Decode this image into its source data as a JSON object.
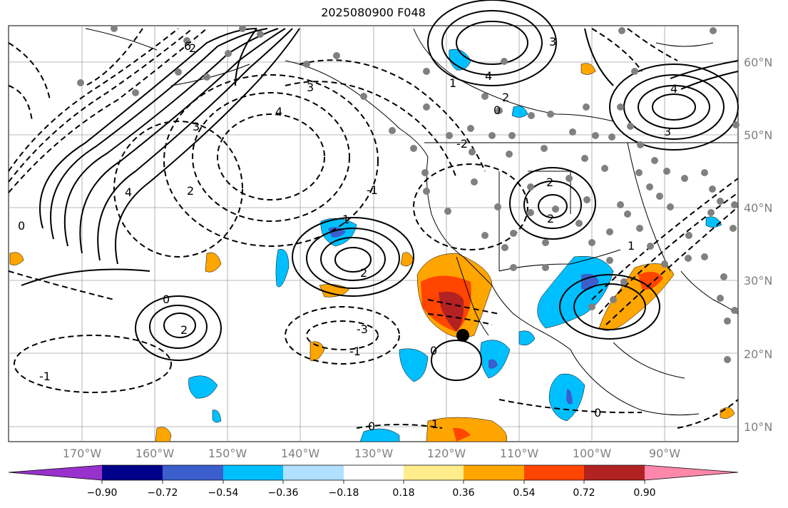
{
  "title": "2025080900 F048",
  "lat_labels": [
    "60°N",
    "50°N",
    "40°N",
    "30°N",
    "20°N",
    "10°N"
  ],
  "lon_labels": [
    "170°W",
    "160°W",
    "150°W",
    "140°W",
    "130°W",
    "120°W",
    "110°W",
    "100°W",
    "90°W"
  ],
  "colorbar": {
    "colors": [
      "#9932cc",
      "#00008b",
      "#3a5fcd",
      "#00bfff",
      "#b0e0ff",
      "#ffffff",
      "#ffec8b",
      "#ffa500",
      "#ff4500",
      "#b22222",
      "#ff88aa"
    ],
    "tick_labels": [
      "−0.90",
      "−0.72",
      "−0.54",
      "−0.36",
      "−0.18",
      "0.18",
      "0.36",
      "0.54",
      "0.72",
      "0.90"
    ]
  },
  "contour_labels": [
    "2",
    "4",
    "3",
    "6",
    "0",
    "1",
    "-1",
    "2",
    "3",
    "4",
    "0",
    "2",
    "-1",
    "2",
    "4",
    "2",
    "1",
    "0",
    "-3",
    "-1",
    "0",
    "2",
    "3",
    "0",
    "1",
    "-2",
    "0",
    "4",
    "2",
    "3",
    "1"
  ],
  "colors": {
    "station_dot": "#808080",
    "contour": "#000000",
    "coast": "#000000"
  }
}
